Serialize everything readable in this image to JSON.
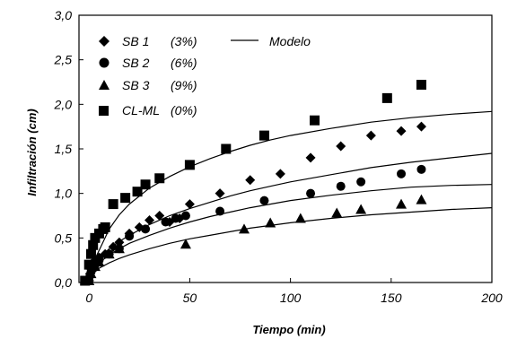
{
  "chart_data": {
    "type": "scatter",
    "xlabel": "Tiempo (min)",
    "ylabel": "Infiltración (cm)",
    "xlim": [
      -5,
      200
    ],
    "ylim": [
      0,
      3.0
    ],
    "x_ticks": [
      "0",
      "50",
      "100",
      "150",
      "200"
    ],
    "y_ticks": [
      "0,0",
      "0,5",
      "1,0",
      "1,5",
      "2,0",
      "2,5",
      "3,0"
    ],
    "legend_position": "top-left",
    "grid": false,
    "series": [
      {
        "name": "SB 1",
        "label": "(3%)",
        "marker": "diamond",
        "x": [
          0,
          0.5,
          1,
          2,
          3,
          5,
          8,
          12,
          15,
          20,
          25,
          30,
          35,
          40,
          45,
          50,
          65,
          80,
          95,
          110,
          125,
          140,
          155,
          165
        ],
        "y": [
          0.02,
          0.1,
          0.15,
          0.2,
          0.25,
          0.28,
          0.32,
          0.4,
          0.45,
          0.55,
          0.62,
          0.7,
          0.75,
          0.68,
          0.72,
          0.88,
          1.0,
          1.15,
          1.22,
          1.4,
          1.53,
          1.65,
          1.7,
          1.75
        ]
      },
      {
        "name": "SB 2",
        "label": "(6%)",
        "marker": "circle",
        "x": [
          0,
          0.5,
          1,
          2,
          3,
          5,
          10,
          15,
          20,
          28,
          38,
          43,
          48,
          65,
          87,
          110,
          125,
          135,
          155,
          165
        ],
        "y": [
          0.02,
          0.08,
          0.12,
          0.16,
          0.2,
          0.25,
          0.32,
          0.38,
          0.52,
          0.6,
          0.68,
          0.72,
          0.75,
          0.8,
          0.92,
          1.0,
          1.08,
          1.13,
          1.22,
          1.27
        ]
      },
      {
        "name": "SB 3",
        "label": "(9%)",
        "marker": "triangle",
        "x": [
          0,
          1,
          3,
          5,
          10,
          15,
          48,
          77,
          90,
          105,
          123,
          135,
          155,
          165
        ],
        "y": [
          0.02,
          0.1,
          0.18,
          0.23,
          0.32,
          0.38,
          0.43,
          0.6,
          0.67,
          0.72,
          0.78,
          0.82,
          0.88,
          0.93
        ]
      },
      {
        "name": "CL-ML",
        "label": "(0%)",
        "marker": "square",
        "x": [
          -2,
          0,
          1,
          2,
          3,
          5,
          7,
          8,
          12,
          18,
          24,
          28,
          35,
          50,
          68,
          87,
          112,
          148,
          165
        ],
        "y": [
          0.02,
          0.2,
          0.32,
          0.42,
          0.5,
          0.55,
          0.6,
          0.62,
          0.88,
          0.95,
          1.02,
          1.1,
          1.17,
          1.32,
          1.5,
          1.65,
          1.82,
          2.07,
          2.22
        ]
      }
    ],
    "model": {
      "name": "Modelo",
      "curves": [
        {
          "x": [
            0.1,
            2,
            5,
            10,
            15,
            20,
            30,
            40,
            50,
            60,
            70,
            80,
            90,
            100,
            120,
            140,
            160,
            180,
            200
          ],
          "y": [
            0.1,
            0.22,
            0.36,
            0.6,
            0.76,
            0.88,
            1.06,
            1.19,
            1.3,
            1.39,
            1.47,
            1.54,
            1.6,
            1.65,
            1.73,
            1.8,
            1.85,
            1.89,
            1.92
          ]
        },
        {
          "x": [
            0.1,
            2,
            5,
            10,
            15,
            20,
            30,
            40,
            50,
            60,
            70,
            80,
            90,
            100,
            120,
            140,
            160,
            180,
            200
          ],
          "y": [
            0.08,
            0.18,
            0.27,
            0.38,
            0.46,
            0.53,
            0.65,
            0.75,
            0.83,
            0.9,
            0.97,
            1.03,
            1.08,
            1.13,
            1.21,
            1.29,
            1.35,
            1.4,
            1.45
          ]
        },
        {
          "x": [
            0.1,
            2,
            5,
            10,
            15,
            20,
            30,
            40,
            50,
            60,
            70,
            80,
            90,
            100,
            120,
            140,
            160,
            180,
            200
          ],
          "y": [
            0.06,
            0.14,
            0.22,
            0.31,
            0.38,
            0.44,
            0.53,
            0.61,
            0.68,
            0.74,
            0.79,
            0.84,
            0.88,
            0.92,
            0.98,
            1.03,
            1.07,
            1.09,
            1.1
          ]
        },
        {
          "x": [
            0.1,
            2,
            5,
            10,
            15,
            20,
            30,
            40,
            50,
            60,
            70,
            80,
            90,
            100,
            120,
            140,
            160,
            180,
            200
          ],
          "y": [
            0.05,
            0.1,
            0.16,
            0.22,
            0.27,
            0.31,
            0.38,
            0.44,
            0.49,
            0.53,
            0.57,
            0.61,
            0.64,
            0.67,
            0.72,
            0.76,
            0.79,
            0.82,
            0.84
          ]
        }
      ]
    }
  }
}
